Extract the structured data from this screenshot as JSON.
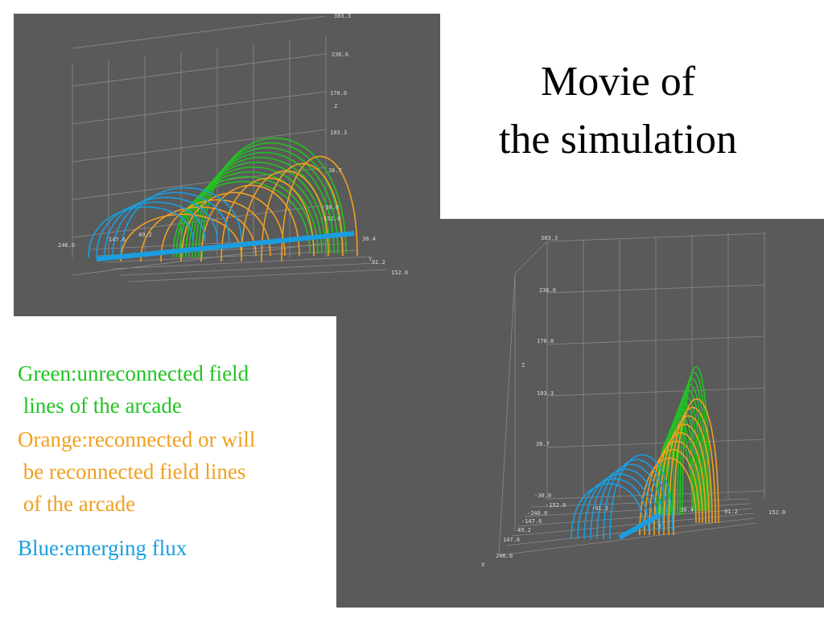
{
  "title": [
    "Movie of",
    "the simulation"
  ],
  "legend": [
    {
      "lines": [
        "Green:unreconnected field",
        " lines of the arcade"
      ],
      "color": "#22c322"
    },
    {
      "lines": [
        "Orange:reconnected or will",
        " be reconnected field lines",
        " of the arcade"
      ],
      "color": "#f0a020"
    },
    {
      "lines": [
        "Blue:emerging flux"
      ],
      "color": "#1a9ee0"
    }
  ],
  "images": [
    {
      "labels": [
        "303.3",
        "236.6",
        "170.0",
        "Z",
        "103.3",
        "36.7",
        "-30.0",
        "246.0",
        "147.6",
        "49.2",
        "-152.0",
        "30.4",
        "Y",
        "91.2",
        "152.0"
      ]
    },
    {
      "labels": [
        "303.3",
        "236.6",
        "170.0",
        "Z",
        "103.3",
        "36.7",
        "-30.0",
        "-152.0",
        "-246.0",
        "-147.6",
        "49.2",
        "147.6",
        "246.0",
        "X",
        "-91.2",
        "30.4",
        "Y",
        "91.2",
        "152.0"
      ]
    }
  ]
}
